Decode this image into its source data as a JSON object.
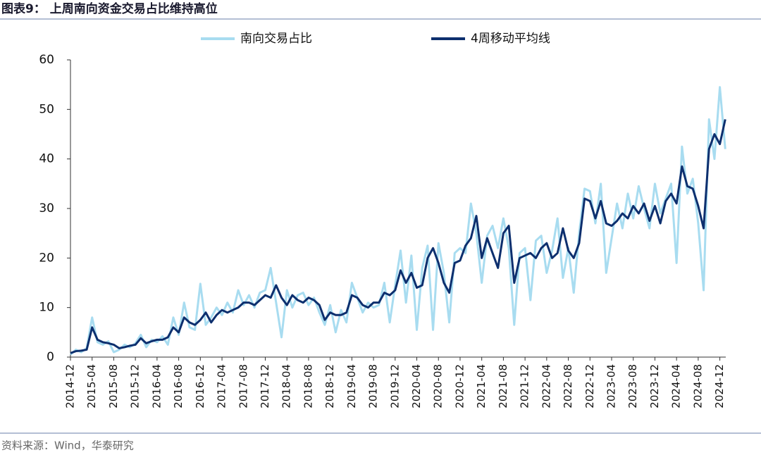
{
  "title": "图表9：  上周南向资金交易占比维持高位",
  "source": "资料来源：Wind，华泰研究",
  "chart_data": {
    "type": "line",
    "x": [
      "2014-12",
      "2015-01",
      "2015-02",
      "2015-03",
      "2015-04",
      "2015-05",
      "2015-06",
      "2015-07",
      "2015-08",
      "2015-09",
      "2015-10",
      "2015-11",
      "2015-12",
      "2016-01",
      "2016-02",
      "2016-03",
      "2016-04",
      "2016-05",
      "2016-06",
      "2016-07",
      "2016-08",
      "2016-09",
      "2016-10",
      "2016-11",
      "2016-12",
      "2017-01",
      "2017-02",
      "2017-03",
      "2017-04",
      "2017-05",
      "2017-06",
      "2017-07",
      "2017-08",
      "2017-09",
      "2017-10",
      "2017-11",
      "2017-12",
      "2018-01",
      "2018-02",
      "2018-03",
      "2018-04",
      "2018-05",
      "2018-06",
      "2018-07",
      "2018-08",
      "2018-09",
      "2018-10",
      "2018-11",
      "2018-12",
      "2019-01",
      "2019-02",
      "2019-03",
      "2019-04",
      "2019-05",
      "2019-06",
      "2019-07",
      "2019-08",
      "2019-09",
      "2019-10",
      "2019-11",
      "2019-12",
      "2020-01",
      "2020-02",
      "2020-03",
      "2020-04",
      "2020-05",
      "2020-06",
      "2020-07",
      "2020-08",
      "2020-09",
      "2020-10",
      "2020-11",
      "2020-12",
      "2021-01",
      "2021-02",
      "2021-03",
      "2021-04",
      "2021-05",
      "2021-06",
      "2021-07",
      "2021-08",
      "2021-09",
      "2021-10",
      "2021-11",
      "2021-12",
      "2022-01",
      "2022-02",
      "2022-03",
      "2022-04",
      "2022-05",
      "2022-06",
      "2022-07",
      "2022-08",
      "2022-09",
      "2022-10",
      "2022-11",
      "2022-12",
      "2023-01",
      "2023-02",
      "2023-03",
      "2023-04",
      "2023-05",
      "2023-06",
      "2023-07",
      "2023-08",
      "2023-09",
      "2023-10",
      "2023-11",
      "2023-12",
      "2024-01",
      "2024-02",
      "2024-03",
      "2024-04",
      "2024-05",
      "2024-06",
      "2024-07",
      "2024-08",
      "2024-09",
      "2024-10",
      "2024-11",
      "2024-12",
      "2025-01"
    ],
    "xticks": [
      "2014-12",
      "2015-04",
      "2015-08",
      "2015-12",
      "2016-04",
      "2016-08",
      "2016-12",
      "2017-04",
      "2017-08",
      "2017-12",
      "2018-04",
      "2018-08",
      "2018-12",
      "2019-04",
      "2019-08",
      "2019-12",
      "2020-04",
      "2020-08",
      "2020-12",
      "2021-04",
      "2021-08",
      "2021-12",
      "2022-04",
      "2022-08",
      "2022-12",
      "2023-04",
      "2023-08",
      "2023-12",
      "2024-04",
      "2024-08",
      "2024-12"
    ],
    "ylim": [
      0,
      60
    ],
    "yticks": [
      0,
      10,
      20,
      30,
      40,
      50,
      60
    ],
    "series": [
      {
        "name": "南向交易占比",
        "color": "#a8dcf0",
        "width": 3,
        "values": [
          0.5,
          1.5,
          1.0,
          1.8,
          8.0,
          3.0,
          2.5,
          3.2,
          1.0,
          1.5,
          2.5,
          2.0,
          2.8,
          4.5,
          2.0,
          3.5,
          3.0,
          4.2,
          2.5,
          8.0,
          4.5,
          11.0,
          6.0,
          5.5,
          14.8,
          6.5,
          8.0,
          10.0,
          8.5,
          11.0,
          9.0,
          13.5,
          10.5,
          12.5,
          10.0,
          13.0,
          13.5,
          18.0,
          11.0,
          4.0,
          13.5,
          10.0,
          12.5,
          13.0,
          10.5,
          12.0,
          9.0,
          6.5,
          10.5,
          5.0,
          9.5,
          7.0,
          15.0,
          12.0,
          9.0,
          11.0,
          10.0,
          10.5,
          15.0,
          7.0,
          14.5,
          21.5,
          11.0,
          20.5,
          5.5,
          18.0,
          22.5,
          5.5,
          23.0,
          17.0,
          7.0,
          21.0,
          22.0,
          21.0,
          31.0,
          25.0,
          15.0,
          24.5,
          26.5,
          22.0,
          28.0,
          22.0,
          6.5,
          21.0,
          22.0,
          11.5,
          23.5,
          24.5,
          17.0,
          21.5,
          28.0,
          16.0,
          22.0,
          13.0,
          25.0,
          34.0,
          33.5,
          27.0,
          35.0,
          17.0,
          24.0,
          31.0,
          26.0,
          33.0,
          28.0,
          34.5,
          30.0,
          26.0,
          35.0,
          29.0,
          32.0,
          35.0,
          19.0,
          42.5,
          33.0,
          36.0,
          27.0,
          13.5,
          48.0,
          40.0,
          54.5,
          42.0
        ]
      },
      {
        "name": "4周移动平均线",
        "color": "#0d2f6e",
        "width": 3,
        "values": [
          0.8,
          1.2,
          1.3,
          1.5,
          6.0,
          3.5,
          3.0,
          2.8,
          2.5,
          1.8,
          2.0,
          2.3,
          2.5,
          3.8,
          2.8,
          3.2,
          3.5,
          3.5,
          4.0,
          6.0,
          5.0,
          8.0,
          7.0,
          6.5,
          7.5,
          9.0,
          7.0,
          8.5,
          9.5,
          9.0,
          9.5,
          10.0,
          11.0,
          11.0,
          10.5,
          11.5,
          12.5,
          12.0,
          14.5,
          12.0,
          10.5,
          12.5,
          11.5,
          11.0,
          12.0,
          11.5,
          10.5,
          7.5,
          9.0,
          8.5,
          8.5,
          9.0,
          12.5,
          12.0,
          10.5,
          10.0,
          11.0,
          11.0,
          13.0,
          12.5,
          13.5,
          17.5,
          15.0,
          17.0,
          14.0,
          14.5,
          20.0,
          22.0,
          19.0,
          15.0,
          13.0,
          19.0,
          19.5,
          22.5,
          24.0,
          28.5,
          20.0,
          24.0,
          21.0,
          18.0,
          25.0,
          26.5,
          15.0,
          20.0,
          20.5,
          21.0,
          20.0,
          22.0,
          23.0,
          20.0,
          21.0,
          26.0,
          21.5,
          20.0,
          23.0,
          32.0,
          31.5,
          28.0,
          31.5,
          27.0,
          26.5,
          27.5,
          29.0,
          28.0,
          30.5,
          29.0,
          31.0,
          27.5,
          30.5,
          27.0,
          31.5,
          33.0,
          31.0,
          38.5,
          34.5,
          34.0,
          30.5,
          26.0,
          42.0,
          45.0,
          43.0,
          48.0
        ]
      }
    ]
  }
}
